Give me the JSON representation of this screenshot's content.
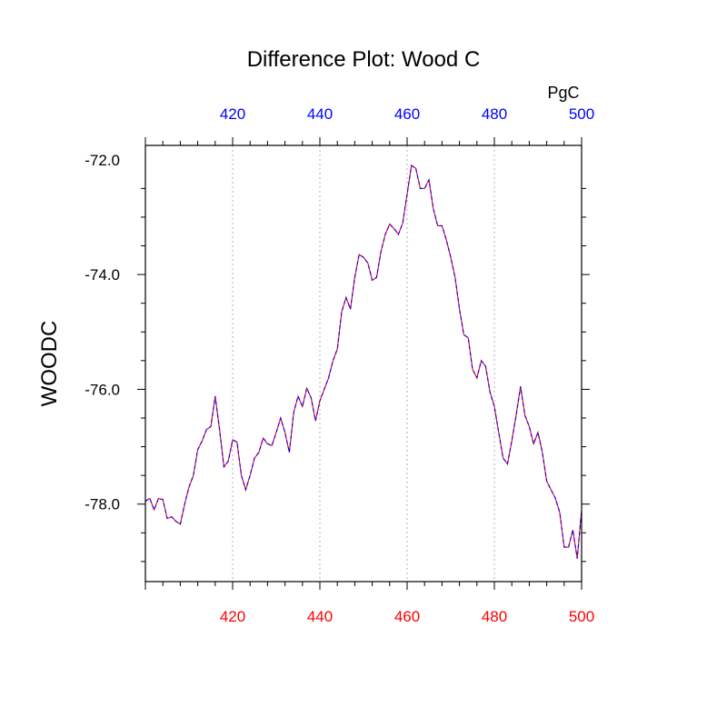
{
  "chart_data": {
    "type": "line",
    "title": "Difference Plot: Wood C",
    "unit_label": "PgC",
    "ylabel": "WOODC",
    "xlabel": "",
    "xlim": [
      400,
      500
    ],
    "ylim": [
      -79.35,
      -71.75
    ],
    "x_ticks": [
      420,
      440,
      460,
      480,
      500
    ],
    "x_tick_labels_bottom": [
      "420",
      "440",
      "460",
      "480",
      "500"
    ],
    "x_tick_labels_top": [
      "420",
      "440",
      "460",
      "480",
      "500"
    ],
    "y_ticks": [
      -72.0,
      -74.0,
      -76.0,
      -78.0
    ],
    "y_tick_labels": [
      "-72.0",
      "-74.0",
      "-76.0",
      "-78.0"
    ],
    "grid": "vertical dotted at x ticks",
    "colors": {
      "bottom_tick_labels": "#ff0000",
      "top_tick_labels": "#0000ff",
      "series_primary": "#ff0000",
      "series_overlay": "#0000ff"
    },
    "series": [
      {
        "x": [
          400,
          401,
          402,
          403,
          404,
          405,
          406,
          407,
          408,
          409,
          410,
          411,
          412,
          413,
          414,
          415,
          416,
          417,
          418,
          419,
          420,
          421,
          422,
          423,
          424,
          425,
          426,
          427,
          428,
          429,
          430,
          431,
          432,
          433,
          434,
          435,
          436,
          437,
          438,
          439,
          440,
          441,
          442,
          443,
          444,
          445,
          446,
          447,
          448,
          449,
          450,
          451,
          452,
          453,
          454,
          455,
          456,
          457,
          458,
          459,
          460,
          461,
          462,
          463,
          464,
          465,
          466,
          467,
          468,
          469,
          470,
          471,
          472,
          473,
          474,
          475,
          476,
          477,
          478,
          479,
          480,
          481,
          482,
          483,
          484,
          485,
          486,
          487,
          488,
          489,
          490,
          491,
          492,
          493,
          494,
          495,
          496,
          497,
          498,
          499,
          500
        ],
        "values": [
          -77.95,
          -77.9,
          -78.1,
          -77.9,
          -77.92,
          -78.25,
          -78.22,
          -78.3,
          -78.35,
          -78.0,
          -77.7,
          -77.5,
          -77.05,
          -76.9,
          -76.7,
          -76.65,
          -76.12,
          -76.7,
          -77.35,
          -77.25,
          -76.88,
          -76.92,
          -77.5,
          -77.75,
          -77.5,
          -77.2,
          -77.1,
          -76.85,
          -76.95,
          -76.98,
          -76.75,
          -76.5,
          -76.75,
          -77.1,
          -76.4,
          -76.12,
          -76.3,
          -75.98,
          -76.15,
          -76.55,
          -76.2,
          -76.0,
          -75.8,
          -75.5,
          -75.3,
          -74.65,
          -74.4,
          -74.6,
          -74.05,
          -73.65,
          -73.7,
          -73.8,
          -74.1,
          -74.05,
          -73.6,
          -73.3,
          -73.12,
          -73.2,
          -73.3,
          -73.1,
          -72.6,
          -72.1,
          -72.15,
          -72.5,
          -72.5,
          -72.35,
          -72.85,
          -73.15,
          -73.15,
          -73.4,
          -73.7,
          -74.05,
          -74.6,
          -75.05,
          -75.1,
          -75.65,
          -75.8,
          -75.5,
          -75.6,
          -76.05,
          -76.3,
          -76.75,
          -77.2,
          -77.3,
          -76.9,
          -76.45,
          -75.95,
          -76.45,
          -76.65,
          -76.95,
          -76.75,
          -77.1,
          -77.6,
          -77.75,
          -77.9,
          -78.15,
          -78.75,
          -78.75,
          -78.45,
          -78.95,
          -78.1
        ]
      }
    ]
  }
}
